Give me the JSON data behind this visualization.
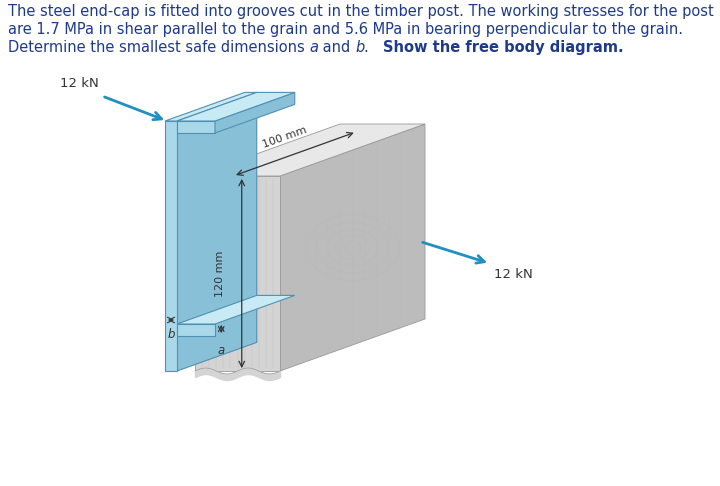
{
  "bg_color": "#ffffff",
  "text_color": "#1e3a8a",
  "timber_front": "#d4d4d4",
  "timber_top": "#e8e8e8",
  "timber_right": "#bcbcbc",
  "steel_front": "#a8d8ea",
  "steel_top": "#c8eaf5",
  "steel_side": "#88c0d8",
  "arrow_color": "#2090c0",
  "dim_color": "#333333",
  "grain_color": "#c0c0c0",
  "endgrain_color": "#b8b8b8",
  "force_label": "12 kN",
  "dim_100": "100 mm",
  "dim_120": "120 mm",
  "label_a": "a",
  "label_b": "b",
  "line1": "The steel end-cap is fitted into grooves cut in the timber post. The working stresses for the post",
  "line2": "are 1.7 MPa in shear parallel to the grain and 5.6 MPa in bearing perpendicular to the grain.",
  "line3a": "Determine the smallest safe dimensions ",
  "line3b": "a",
  "line3c": " and ",
  "line3d": "b",
  "line3e": ".   ",
  "line3f": "Show the free body diagram.",
  "fontsize_text": 10.5,
  "fontsize_label": 8.5,
  "fontsize_dim": 8.0,
  "fontsize_force": 9.5
}
